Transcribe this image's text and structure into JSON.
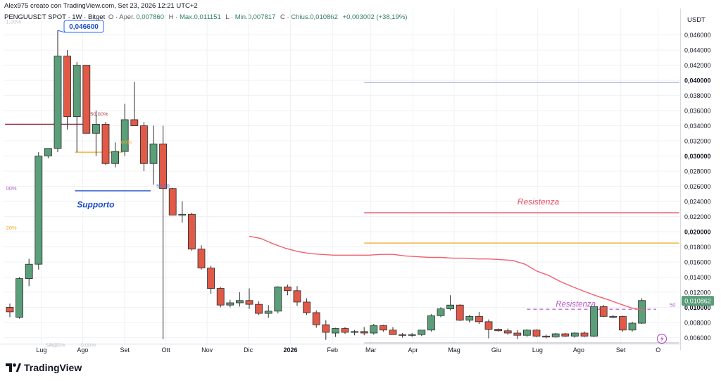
{
  "header": {
    "byline": "Alex975 creato con TradingView.com, Set 23, 2026 12:21 UTC+2",
    "symbol": "PENGUUSDT SPOT · 1W · Bitget",
    "ohlc": [
      {
        "label": "O",
        "value": "0,007860"
      },
      {
        "label": "H",
        "value": "Max.0,011151"
      },
      {
        "label": "L",
        "value": "Min.0,007817"
      },
      {
        "label": "C",
        "value": "Chius.0,010862"
      },
      {
        "label": "",
        "value": "+0,003002 (+38,19%)"
      }
    ],
    "ohlc_prefix": "Aper."
  },
  "brand": {
    "logo_text": "TradingView",
    "icon": "tradingview-logo-icon"
  },
  "colors": {
    "up": "#5a9e7a",
    "down": "#e05a47",
    "ma": "#f06070",
    "resistance_red": "#e8566a",
    "orange": "#f5a623",
    "blue": "#1e50c8",
    "purple": "#b45ac8"
  },
  "chart_data": {
    "type": "candlestick",
    "y_axis_title": "USDT",
    "ylim": [
      0.0052,
      0.0495
    ],
    "y_ticks": [
      "0,006000",
      "0,008000",
      "0,010000",
      "0,012000",
      "0,014000",
      "0,016000",
      "0,018000",
      "0,020000",
      "0,022000",
      "0,024000",
      "0,026000",
      "0,028000",
      "0,030000",
      "0,032000",
      "0,034000",
      "0,036000",
      "0,038000",
      "0,040000",
      "0,042000",
      "0,044000",
      "0,046000"
    ],
    "y_tick_values": [
      0.006,
      0.008,
      0.01,
      0.012,
      0.014,
      0.016,
      0.018,
      0.02,
      0.022,
      0.024,
      0.026,
      0.028,
      0.03,
      0.032,
      0.034,
      0.036,
      0.038,
      0.04,
      0.042,
      0.044,
      0.046
    ],
    "x_labels": [
      {
        "label": "Lug",
        "bar": 3.3
      },
      {
        "label": "Ago",
        "bar": 7.6
      },
      {
        "label": "Set",
        "bar": 12.0
      },
      {
        "label": "Ott",
        "bar": 16.3
      },
      {
        "label": "Nov",
        "bar": 20.6
      },
      {
        "label": "Dic",
        "bar": 24.9
      },
      {
        "label": "2026",
        "bar": 29.3
      },
      {
        "label": "Feb",
        "bar": 33.7
      },
      {
        "label": "Mar",
        "bar": 37.7
      },
      {
        "label": "Apr",
        "bar": 42.1
      },
      {
        "label": "Mag",
        "bar": 46.4
      },
      {
        "label": "Giu",
        "bar": 50.8
      },
      {
        "label": "Lug",
        "bar": 55.1
      },
      {
        "label": "Ago",
        "bar": 59.4
      },
      {
        "label": "Set",
        "bar": 63.8
      },
      {
        "label": "O",
        "bar": 67.7
      }
    ],
    "candles": [
      {
        "o": 0.01,
        "h": 0.0105,
        "l": 0.0087,
        "c": 0.0094
      },
      {
        "o": 0.0087,
        "h": 0.014,
        "l": 0.0085,
        "c": 0.0138
      },
      {
        "o": 0.0138,
        "h": 0.0164,
        "l": 0.0128,
        "c": 0.0157
      },
      {
        "o": 0.0157,
        "h": 0.0305,
        "l": 0.015,
        "c": 0.03
      },
      {
        "o": 0.03,
        "h": 0.031,
        "l": 0.0297,
        "c": 0.031
      },
      {
        "o": 0.031,
        "h": 0.0466,
        "l": 0.0305,
        "c": 0.0432
      },
      {
        "o": 0.0432,
        "h": 0.044,
        "l": 0.0335,
        "c": 0.0352
      },
      {
        "o": 0.0352,
        "h": 0.0424,
        "l": 0.0305,
        "c": 0.042
      },
      {
        "o": 0.042,
        "h": 0.042,
        "l": 0.033,
        "c": 0.033
      },
      {
        "o": 0.033,
        "h": 0.036,
        "l": 0.03,
        "c": 0.0342
      },
      {
        "o": 0.0342,
        "h": 0.0345,
        "l": 0.0288,
        "c": 0.029
      },
      {
        "o": 0.029,
        "h": 0.0318,
        "l": 0.0285,
        "c": 0.0306
      },
      {
        "o": 0.0306,
        "h": 0.0369,
        "l": 0.03,
        "c": 0.0348
      },
      {
        "o": 0.0348,
        "h": 0.0398,
        "l": 0.0342,
        "c": 0.034
      },
      {
        "o": 0.034,
        "h": 0.0345,
        "l": 0.028,
        "c": 0.029
      },
      {
        "o": 0.029,
        "h": 0.034,
        "l": 0.0262,
        "c": 0.0316
      },
      {
        "o": 0.0316,
        "h": 0.034,
        "l": 0.0058,
        "c": 0.0257
      },
      {
        "o": 0.0257,
        "h": 0.0258,
        "l": 0.0222,
        "c": 0.0222
      },
      {
        "o": 0.0222,
        "h": 0.024,
        "l": 0.0212,
        "c": 0.0223
      },
      {
        "o": 0.0223,
        "h": 0.0225,
        "l": 0.0175,
        "c": 0.0177
      },
      {
        "o": 0.0177,
        "h": 0.0182,
        "l": 0.015,
        "c": 0.0152
      },
      {
        "o": 0.0152,
        "h": 0.0155,
        "l": 0.0118,
        "c": 0.0125
      },
      {
        "o": 0.0125,
        "h": 0.0127,
        "l": 0.01,
        "c": 0.0103
      },
      {
        "o": 0.0103,
        "h": 0.011,
        "l": 0.01,
        "c": 0.0106
      },
      {
        "o": 0.0106,
        "h": 0.012,
        "l": 0.0101,
        "c": 0.0109
      },
      {
        "o": 0.0109,
        "h": 0.0125,
        "l": 0.0098,
        "c": 0.0104
      },
      {
        "o": 0.0104,
        "h": 0.0108,
        "l": 0.009,
        "c": 0.0092
      },
      {
        "o": 0.0092,
        "h": 0.0103,
        "l": 0.0086,
        "c": 0.0095
      },
      {
        "o": 0.0095,
        "h": 0.0128,
        "l": 0.0092,
        "c": 0.0127
      },
      {
        "o": 0.0127,
        "h": 0.013,
        "l": 0.0116,
        "c": 0.0122
      },
      {
        "o": 0.0122,
        "h": 0.0128,
        "l": 0.0102,
        "c": 0.0107
      },
      {
        "o": 0.0107,
        "h": 0.0112,
        "l": 0.009,
        "c": 0.0093
      },
      {
        "o": 0.0093,
        "h": 0.0096,
        "l": 0.0073,
        "c": 0.0077
      },
      {
        "o": 0.0077,
        "h": 0.0083,
        "l": 0.0057,
        "c": 0.0067
      },
      {
        "o": 0.0066,
        "h": 0.0073,
        "l": 0.0061,
        "c": 0.0072
      },
      {
        "o": 0.0072,
        "h": 0.0074,
        "l": 0.0065,
        "c": 0.0067
      },
      {
        "o": 0.0067,
        "h": 0.007,
        "l": 0.0063,
        "c": 0.0068
      },
      {
        "o": 0.0068,
        "h": 0.0074,
        "l": 0.0063,
        "c": 0.0066
      },
      {
        "o": 0.0066,
        "h": 0.0078,
        "l": 0.0064,
        "c": 0.0076
      },
      {
        "o": 0.0076,
        "h": 0.0077,
        "l": 0.0068,
        "c": 0.007
      },
      {
        "o": 0.007,
        "h": 0.0074,
        "l": 0.0065,
        "c": 0.0064
      },
      {
        "o": 0.0064,
        "h": 0.0066,
        "l": 0.006,
        "c": 0.0063
      },
      {
        "o": 0.0063,
        "h": 0.0066,
        "l": 0.0061,
        "c": 0.0064
      },
      {
        "o": 0.0064,
        "h": 0.007,
        "l": 0.0062,
        "c": 0.007
      },
      {
        "o": 0.007,
        "h": 0.0091,
        "l": 0.0068,
        "c": 0.0089
      },
      {
        "o": 0.0089,
        "h": 0.01,
        "l": 0.0087,
        "c": 0.0098
      },
      {
        "o": 0.0098,
        "h": 0.0116,
        "l": 0.0096,
        "c": 0.0103
      },
      {
        "o": 0.0103,
        "h": 0.0104,
        "l": 0.0082,
        "c": 0.0083
      },
      {
        "o": 0.0083,
        "h": 0.009,
        "l": 0.008,
        "c": 0.0088
      },
      {
        "o": 0.0088,
        "h": 0.0094,
        "l": 0.0078,
        "c": 0.0081
      },
      {
        "o": 0.0081,
        "h": 0.0084,
        "l": 0.0059,
        "c": 0.0071
      },
      {
        "o": 0.0071,
        "h": 0.0072,
        "l": 0.0068,
        "c": 0.0069
      },
      {
        "o": 0.0069,
        "h": 0.0072,
        "l": 0.0064,
        "c": 0.0066
      },
      {
        "o": 0.0066,
        "h": 0.007,
        "l": 0.0058,
        "c": 0.0063
      },
      {
        "o": 0.0063,
        "h": 0.0071,
        "l": 0.0061,
        "c": 0.007
      },
      {
        "o": 0.007,
        "h": 0.0071,
        "l": 0.0061,
        "c": 0.0062
      },
      {
        "o": 0.0062,
        "h": 0.0064,
        "l": 0.0059,
        "c": 0.0061
      },
      {
        "o": 0.0061,
        "h": 0.0066,
        "l": 0.006,
        "c": 0.0065
      },
      {
        "o": 0.0065,
        "h": 0.0066,
        "l": 0.0061,
        "c": 0.0062
      },
      {
        "o": 0.0062,
        "h": 0.0067,
        "l": 0.006,
        "c": 0.0066
      },
      {
        "o": 0.0066,
        "h": 0.0068,
        "l": 0.0061,
        "c": 0.0062
      },
      {
        "o": 0.0062,
        "h": 0.0102,
        "l": 0.0061,
        "c": 0.0101
      },
      {
        "o": 0.0101,
        "h": 0.0103,
        "l": 0.0087,
        "c": 0.0088
      },
      {
        "o": 0.0088,
        "h": 0.009,
        "l": 0.0086,
        "c": 0.0088
      },
      {
        "o": 0.0088,
        "h": 0.0089,
        "l": 0.0068,
        "c": 0.007
      },
      {
        "o": 0.007,
        "h": 0.0081,
        "l": 0.0068,
        "c": 0.0079
      },
      {
        "o": 0.0079,
        "h": 0.0112,
        "l": 0.0078,
        "c": 0.0109
      }
    ],
    "moving_average": [
      [
        25.0,
        0.0194
      ],
      [
        26.2,
        0.0191
      ],
      [
        27.5,
        0.0184
      ],
      [
        28.8,
        0.0178
      ],
      [
        30.0,
        0.0174
      ],
      [
        31.3,
        0.0171
      ],
      [
        32.5,
        0.017
      ],
      [
        33.8,
        0.0169
      ],
      [
        35,
        0.0169
      ],
      [
        36.3,
        0.0169
      ],
      [
        37.5,
        0.0169
      ],
      [
        38.8,
        0.017
      ],
      [
        40,
        0.017
      ],
      [
        41.3,
        0.0168
      ],
      [
        42.5,
        0.0167
      ],
      [
        43.8,
        0.0166
      ],
      [
        45,
        0.0166
      ],
      [
        46.3,
        0.0165
      ],
      [
        47.5,
        0.0165
      ],
      [
        48.8,
        0.0164
      ],
      [
        50,
        0.0164
      ],
      [
        51.3,
        0.0163
      ],
      [
        52.5,
        0.0162
      ],
      [
        53.8,
        0.0157
      ],
      [
        55,
        0.0148
      ],
      [
        56.3,
        0.0142
      ],
      [
        57.5,
        0.0134
      ],
      [
        58.8,
        0.0127
      ],
      [
        60,
        0.0121
      ],
      [
        61.3,
        0.0115
      ],
      [
        62.5,
        0.011
      ],
      [
        63.8,
        0.0104
      ],
      [
        65,
        0.0099
      ],
      [
        66.3,
        0.0096
      ]
    ],
    "hlines": [
      {
        "name": "red-left",
        "y": 0.0342,
        "x0": -0.5,
        "x1": 7.6,
        "color": "#8b1a30",
        "style": "solid"
      },
      {
        "name": "orange-left",
        "y": 0.0305,
        "x0": 6.8,
        "x1": 11.8,
        "color": "#f5a623",
        "style": "solid"
      },
      {
        "name": "blue-supporto",
        "y": 0.0254,
        "x0": 6.8,
        "x1": 14.7,
        "color": "#1e50c8",
        "style": "solid"
      },
      {
        "name": "blue-top",
        "y": 0.0397,
        "x0": 37.0,
        "x1": 69.9,
        "color": "#9fb0d8",
        "style": "solid"
      },
      {
        "name": "red-resistenza",
        "y": 0.0225,
        "x0": 37.0,
        "x1": 69.9,
        "color": "#e8566a",
        "style": "solid"
      },
      {
        "name": "orange-right",
        "y": 0.0185,
        "x0": 37.0,
        "x1": 69.9,
        "color": "#f5a623",
        "style": "solid"
      },
      {
        "name": "purple-dashed",
        "y": 0.00975,
        "x0": 54.0,
        "x1": 67.5,
        "color": "#b45ac8",
        "style": "dashed"
      },
      {
        "name": "gray-bottom",
        "y": 0.0053,
        "x0": 37.0,
        "x1": 69.9,
        "color": "#b9bcc7",
        "style": "solid"
      }
    ],
    "annotations": [
      {
        "name": "label-supporto",
        "text": "Supporto",
        "x": 7.0,
        "y": 0.0232,
        "color": "#1e50c8",
        "size": 12,
        "style": "italic",
        "weight": "bold"
      },
      {
        "name": "label-resistenza-1",
        "text": "Resistenza",
        "x": 53.0,
        "y": 0.0236,
        "color": "#e8566a",
        "size": 12,
        "style": "italic",
        "weight": "normal"
      },
      {
        "name": "label-resistenza-2",
        "text": "Resistenza",
        "x": 57.0,
        "y": 0.0101,
        "color": "#b45ac8",
        "size": 11.5,
        "style": "italic",
        "weight": "normal"
      },
      {
        "name": "fib-label-top-1",
        "text": "1,00%",
        "x": -0.4,
        "y": 0.0475,
        "color": "#c0c4cc",
        "size": 7.5,
        "style": "normal",
        "weight": "normal"
      },
      {
        "name": "fib-label-red",
        "text": "50,00%",
        "x": 8.4,
        "y": 0.0353,
        "color": "#b24a5a",
        "size": 7.5,
        "style": "normal",
        "weight": "normal"
      },
      {
        "name": "fib-label-orange-left",
        "text": "00%",
        "x": 11.6,
        "y": 0.0316,
        "color": "#f5a623",
        "size": 7.5,
        "style": "normal",
        "weight": "normal"
      },
      {
        "name": "fib-label-blue",
        "text": "50,00",
        "x": 15.3,
        "y": 0.0258,
        "color": "#4a78d8",
        "size": 7.5,
        "style": "normal",
        "weight": "normal"
      },
      {
        "name": "fib-label-purple-left",
        "text": "00%",
        "x": -0.4,
        "y": 0.0255,
        "color": "#b45ac8",
        "size": 7.5,
        "style": "normal",
        "weight": "normal"
      },
      {
        "name": "fib-label-orange-far-left",
        "text": "20%",
        "x": -0.4,
        "y": 0.0203,
        "color": "#f5a623",
        "size": 7.5,
        "style": "normal",
        "weight": "normal"
      },
      {
        "name": "fib-label-bottom-1",
        "text": "0,00%",
        "x": 4.2,
        "y": 0.0048,
        "color": "#c0c4cc",
        "size": 7.5,
        "style": "normal",
        "weight": "normal"
      },
      {
        "name": "fib-label-bottom-2",
        "text": "0,00%",
        "x": 7.4,
        "y": 0.0048,
        "color": "#c0c4cc",
        "size": 7.5,
        "style": "normal",
        "weight": "normal"
      },
      {
        "name": "fib-label-right-purple",
        "text": "50",
        "x": 68.9,
        "y": 0.0101,
        "color": "#b45ac8",
        "size": 7.5,
        "style": "normal",
        "weight": "normal"
      },
      {
        "name": "fib-label-spot",
        "text": "SPOT",
        "x": 3.7,
        "y": 0.0048,
        "color": "#c0c4cc",
        "size": 7.5,
        "style": "normal",
        "weight": "normal"
      }
    ],
    "price_marker": {
      "text": "0,046600",
      "bar": 5,
      "value": 0.0466
    },
    "last_price": {
      "text": "0,010862",
      "value": 0.010862
    }
  }
}
